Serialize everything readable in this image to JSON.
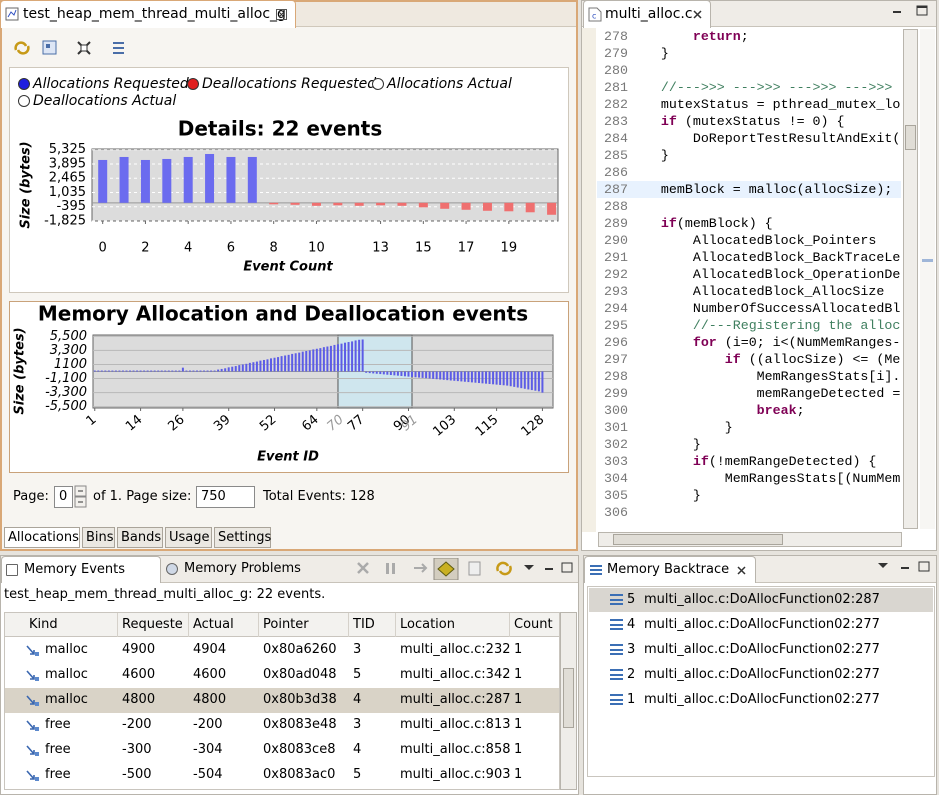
{
  "left_panel": {
    "tab": "test_heap_mem_thread_multi_alloc_g",
    "page_label": "Page:",
    "page": 0,
    "page_of": "of 1. Page size:",
    "page_size": 750,
    "total": "Total Events: 128",
    "tabs": [
      "Allocations",
      "Bins",
      "Bands",
      "Usage",
      "Settings"
    ]
  },
  "chart_data": [
    {
      "type": "bar",
      "title": "Details: 22 events",
      "xlabel": "Event Count",
      "ylabel": "Size (bytes)",
      "series": [
        {
          "name": "Allocations Requested",
          "color": "#6b6bef",
          "x": [
            0,
            1,
            2,
            3,
            4,
            5,
            6,
            7
          ],
          "values": [
            4300,
            4600,
            4300,
            4400,
            4600,
            4900,
            4600,
            4600
          ]
        },
        {
          "name": "Deallocations Requested",
          "color": "#ef6f6f",
          "x": [
            8,
            9,
            10,
            11,
            12,
            13,
            14,
            15,
            16,
            17,
            18,
            19,
            20,
            21
          ],
          "values": [
            -150,
            -200,
            -300,
            -250,
            -300,
            -250,
            -300,
            -450,
            -600,
            -700,
            -800,
            -850,
            -950,
            -1200
          ]
        },
        {
          "name": "Allocations Actual",
          "color": "#ffffff"
        },
        {
          "name": "Deallocations Actual",
          "color": "#ffffff"
        }
      ],
      "xlim": [
        -0.5,
        21.3
      ],
      "xticks": [
        0,
        2,
        4,
        6,
        8,
        10,
        13,
        15,
        17,
        19
      ],
      "ylim": [
        -1825,
        5400
      ],
      "yticks": [
        {
          "value": 5325,
          "label": "5,325"
        },
        {
          "value": 3895,
          "label": "3,895"
        },
        {
          "value": 2465,
          "label": "2,465"
        },
        {
          "value": 1035,
          "label": "1,035"
        },
        -395,
        {
          "value": -1825,
          "label": "-1,825"
        }
      ],
      "grid": true
    },
    {
      "type": "bar",
      "title": "Memory Allocation and Deallocation events",
      "xlabel": "Event ID",
      "ylabel": "Size (bytes)",
      "color": "#5c5ce6",
      "x": [
        1,
        2,
        3,
        4,
        5,
        6,
        7,
        8,
        9,
        10,
        11,
        12,
        13,
        14,
        15,
        16,
        17,
        18,
        19,
        20,
        21,
        22,
        23,
        24,
        25,
        26,
        27,
        28,
        29,
        30,
        31,
        32,
        33,
        34,
        35,
        36,
        37,
        38,
        39,
        40,
        41,
        42,
        43,
        44,
        45,
        46,
        47,
        48,
        49,
        50,
        51,
        52,
        53,
        54,
        55,
        56,
        57,
        58,
        59,
        60,
        61,
        62,
        63,
        64,
        65,
        66,
        67,
        68,
        69,
        70,
        71,
        72,
        73,
        74,
        75,
        76,
        77,
        78,
        79,
        80,
        81,
        82,
        83,
        84,
        85,
        86,
        87,
        88,
        89,
        90,
        91,
        92,
        93,
        94,
        95,
        96,
        97,
        98,
        99,
        100,
        101,
        102,
        103,
        104,
        105,
        106,
        107,
        108,
        109,
        110,
        111,
        112,
        113,
        114,
        115,
        116,
        117,
        118,
        119,
        120,
        121,
        122,
        123,
        124,
        125,
        126,
        127,
        128
      ],
      "values": [
        150,
        150,
        150,
        150,
        150,
        150,
        150,
        150,
        150,
        150,
        150,
        150,
        150,
        150,
        150,
        150,
        150,
        150,
        150,
        150,
        150,
        150,
        150,
        150,
        150,
        600,
        150,
        150,
        150,
        150,
        150,
        150,
        150,
        150,
        150,
        300,
        400,
        500,
        650,
        750,
        850,
        1000,
        1100,
        1200,
        1350,
        1450,
        1550,
        1700,
        1800,
        1900,
        2050,
        2150,
        2250,
        2400,
        2500,
        2600,
        2750,
        2850,
        2950,
        3100,
        3200,
        3300,
        3450,
        3550,
        3650,
        3800,
        3900,
        4000,
        4150,
        4250,
        4350,
        4500,
        4600,
        4700,
        4850,
        4950,
        5000,
        -200,
        -250,
        -300,
        -350,
        -400,
        -450,
        -500,
        -550,
        -600,
        -650,
        -700,
        -750,
        -800,
        -850,
        -900,
        -950,
        -1000,
        -1050,
        -1100,
        -1150,
        -1200,
        -1250,
        -1300,
        -1350,
        -1400,
        -1450,
        -1500,
        -1550,
        -1600,
        -1650,
        -1700,
        -1750,
        -1800,
        -1850,
        -1900,
        -1950,
        -2000,
        -2050,
        -2100,
        -2150,
        -2200,
        -2300,
        -2400,
        -2500,
        -2600,
        -2700,
        -2800,
        -2900,
        -3000,
        -3100,
        -3300
      ],
      "xlim": [
        0.5,
        131
      ],
      "xticks": [
        1,
        14,
        26,
        39,
        52,
        64,
        77,
        90,
        103,
        115,
        128
      ],
      "selection": [
        70,
        91
      ],
      "ylim": [
        -5700,
        5700
      ],
      "yticks": [
        {
          "value": 5500,
          "label": "5,500"
        },
        {
          "value": 3300,
          "label": "3,300"
        },
        {
          "value": 1100,
          "label": "1100"
        },
        {
          "value": -1100,
          "label": "-1,100"
        },
        {
          "value": -3300,
          "label": "-3,300"
        },
        {
          "value": -5500,
          "label": "-5,500"
        }
      ],
      "grid": true
    }
  ],
  "editor": {
    "tab": "multi_alloc.c",
    "current_line": 287,
    "lines": [
      {
        "n": 278,
        "text": "        return;"
      },
      {
        "n": 279,
        "text": "    }"
      },
      {
        "n": 280
      },
      {
        "n": 281,
        "text": "    //--->>> --->>> --->>> --->>>"
      },
      {
        "n": 282,
        "text": "    mutexStatus = pthread_mutex_lo"
      },
      {
        "n": 283,
        "text": "    if (mutexStatus != 0) {"
      },
      {
        "n": 284,
        "text": "        DoReportTestResultAndExit("
      },
      {
        "n": 285,
        "text": "    }"
      },
      {
        "n": 286
      },
      {
        "n": 287,
        "text": "    memBlock = malloc(allocSize);"
      },
      {
        "n": 288
      },
      {
        "n": 289,
        "text": "    if(memBlock) {"
      },
      {
        "n": 290,
        "text": "        AllocatedBlock_Pointers"
      },
      {
        "n": 291,
        "text": "        AllocatedBlock_BackTraceLe"
      },
      {
        "n": 292,
        "text": "        AllocatedBlock_OperationDe"
      },
      {
        "n": 293,
        "text": "        AllocatedBlock_AllocSize"
      },
      {
        "n": 294,
        "text": "        NumberOfSuccessAllocatedBl"
      },
      {
        "n": 295,
        "text": "        //---Registering the alloc"
      },
      {
        "n": 296,
        "text": "        for (i=0; i<(NumMemRanges-"
      },
      {
        "n": 297,
        "text": "            if ((allocSize) <= (Me"
      },
      {
        "n": 298,
        "text": "                MemRangesStats[i]."
      },
      {
        "n": 299,
        "text": "                memRangeDetected ="
      },
      {
        "n": 300,
        "text": "                break;"
      },
      {
        "n": 301,
        "text": "            }"
      },
      {
        "n": 302,
        "text": "        }"
      },
      {
        "n": 303,
        "text": "        if(!memRangeDetected) {"
      },
      {
        "n": 304,
        "text": "            MemRangesStats[(NumMem"
      },
      {
        "n": 305,
        "text": "        }"
      },
      {
        "n": 306
      }
    ]
  },
  "events_view": {
    "tabs": [
      "Memory Events",
      "Memory Problems"
    ],
    "status": "test_heap_mem_thread_multi_alloc_g: 22 events.",
    "columns": [
      "Kind",
      "Requeste",
      "Actual",
      "Pointer",
      "TID",
      "Location",
      "Count"
    ],
    "rows": [
      [
        "malloc",
        4900,
        4904,
        "0x80a6260",
        3,
        "multi_alloc.c:232",
        1
      ],
      [
        "malloc",
        4600,
        4600,
        "0x80ad048",
        5,
        "multi_alloc.c:342",
        1
      ],
      [
        "malloc",
        4800,
        4800,
        "0x80b3d38",
        4,
        "multi_alloc.c:287",
        1
      ],
      [
        "free",
        -200,
        -200,
        "0x8083e48",
        3,
        "multi_alloc.c:813",
        1
      ],
      [
        "free",
        -300,
        -304,
        "0x8083ce8",
        4,
        "multi_alloc.c:858",
        1
      ],
      [
        "free",
        -500,
        -504,
        "0x8083ac0",
        5,
        "multi_alloc.c:903",
        1
      ]
    ],
    "selected_row": 2
  },
  "backtrace": {
    "tab": "Memory Backtrace",
    "rows": [
      [
        5,
        "multi_alloc.c:DoAllocFunction02:287"
      ],
      [
        4,
        "multi_alloc.c:DoAllocFunction02:277"
      ],
      [
        3,
        "multi_alloc.c:DoAllocFunction02:277"
      ],
      [
        2,
        "multi_alloc.c:DoAllocFunction02:277"
      ],
      [
        1,
        "multi_alloc.c:DoAllocFunction02:277"
      ]
    ],
    "selected_row": 0
  }
}
